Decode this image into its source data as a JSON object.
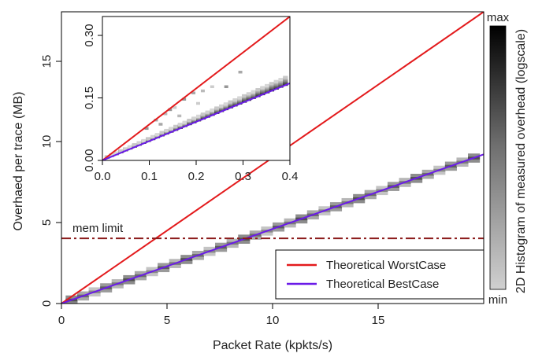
{
  "chart_data": [
    {
      "id": "main",
      "type": "heatmap",
      "xlabel": "Packet Rate (kpkts/s)",
      "ylabel": "Overhaed per trace (MB)",
      "xlim": [
        0,
        20
      ],
      "ylim": [
        0,
        17.9
      ],
      "xticks": [
        0,
        5,
        10,
        15
      ],
      "yticks": [
        0,
        5,
        10,
        15
      ],
      "series": [
        {
          "name": "Theoretical WorstCase",
          "color": "#e31a1c",
          "x": [
            0,
            20
          ],
          "y": [
            0,
            17.9
          ]
        },
        {
          "name": "Theoretical BestCase",
          "color": "#6a1be8",
          "x": [
            0,
            20
          ],
          "y": [
            0,
            9.15
          ]
        }
      ],
      "mem_limit": {
        "label": "mem limit",
        "y": 4.0,
        "color": "#8b1a1a"
      },
      "histogram": {
        "slope": 0.457,
        "x_start": 0.2,
        "x_end": 19.8,
        "cells": 36
      },
      "legend_position": "bottom-right"
    },
    {
      "id": "inset",
      "type": "heatmap",
      "xlim": [
        0,
        0.4
      ],
      "ylim": [
        0,
        0.345
      ],
      "xticks": [
        0.0,
        0.1,
        0.2,
        0.3,
        0.4
      ],
      "yticks": [
        0.0,
        0.15,
        0.3
      ],
      "series": [
        {
          "name": "Theoretical WorstCase",
          "color": "#e31a1c",
          "x": [
            0,
            0.4
          ],
          "y": [
            0,
            0.345
          ]
        },
        {
          "name": "Theoretical BestCase",
          "color": "#6a1be8",
          "x": [
            0,
            0.4
          ],
          "y": [
            0,
            0.185
          ]
        }
      ],
      "histogram": {
        "slope": 0.46,
        "x_start": 0.005,
        "x_end": 0.395,
        "cells": 40
      }
    }
  ],
  "labels": {
    "x_ticks_main": [
      "0",
      "5",
      "10",
      "15"
    ],
    "y_ticks_main": [
      "0",
      "5",
      "10",
      "15"
    ],
    "x_ticks_inset": [
      "0.0",
      "0.1",
      "0.2",
      "0.3",
      "0.4"
    ],
    "y_ticks_inset": [
      "0.00",
      "0.15",
      "0.30"
    ],
    "mem_limit": "mem limit",
    "legend_worst": "Theoretical WorstCase",
    "legend_best": "Theoretical BestCase",
    "xlabel": "Packet Rate (kpkts/s)",
    "ylabel": "Overhaed per trace (MB)",
    "colorbar_title": "2D Histogram of measured overhead (logscale)",
    "colorbar_max": "max",
    "colorbar_min": "min"
  },
  "colors": {
    "worst": "#e31a1c",
    "best": "#6a1be8",
    "mem_limit": "#8b1a1a"
  }
}
